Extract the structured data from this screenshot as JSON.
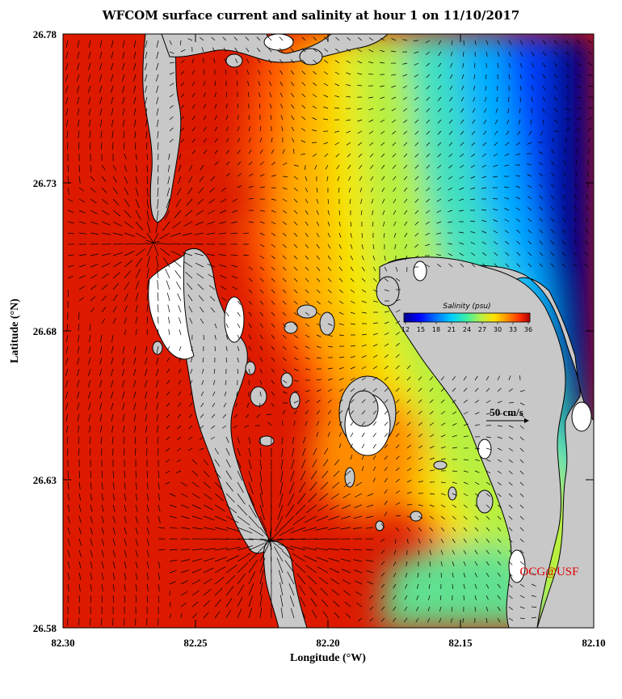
{
  "title": "WFCOM surface current and salinity at hour 1 on 11/10/2017",
  "x_axis": {
    "label": "Longitude (°W)",
    "ticks": [
      "82.30",
      "82.25",
      "82.20",
      "82.15",
      "82.10"
    ]
  },
  "y_axis": {
    "label": "Latitude (°N)",
    "ticks": [
      "26.58",
      "26.63",
      "26.68",
      "26.73",
      "26.78"
    ]
  },
  "colorbar": {
    "title": "Salinity (psu)",
    "ticks": [
      "12",
      "15",
      "18",
      "21",
      "24",
      "27",
      "30",
      "33",
      "36"
    ],
    "colors": [
      "#00008b",
      "#0000ff",
      "#0060ff",
      "#00c0ff",
      "#20e0c0",
      "#60f080",
      "#c0f040",
      "#ffe000",
      "#ffa000",
      "#ff6000",
      "#ff2000",
      "#c00000"
    ]
  },
  "scale": {
    "label": "50 cm/s"
  },
  "credit": "OCG@USF",
  "colors": {
    "land": "#c8c8c8",
    "dry": "#ffffff",
    "high_salinity": "#dd1a00",
    "low_salinity": "#00008b"
  }
}
